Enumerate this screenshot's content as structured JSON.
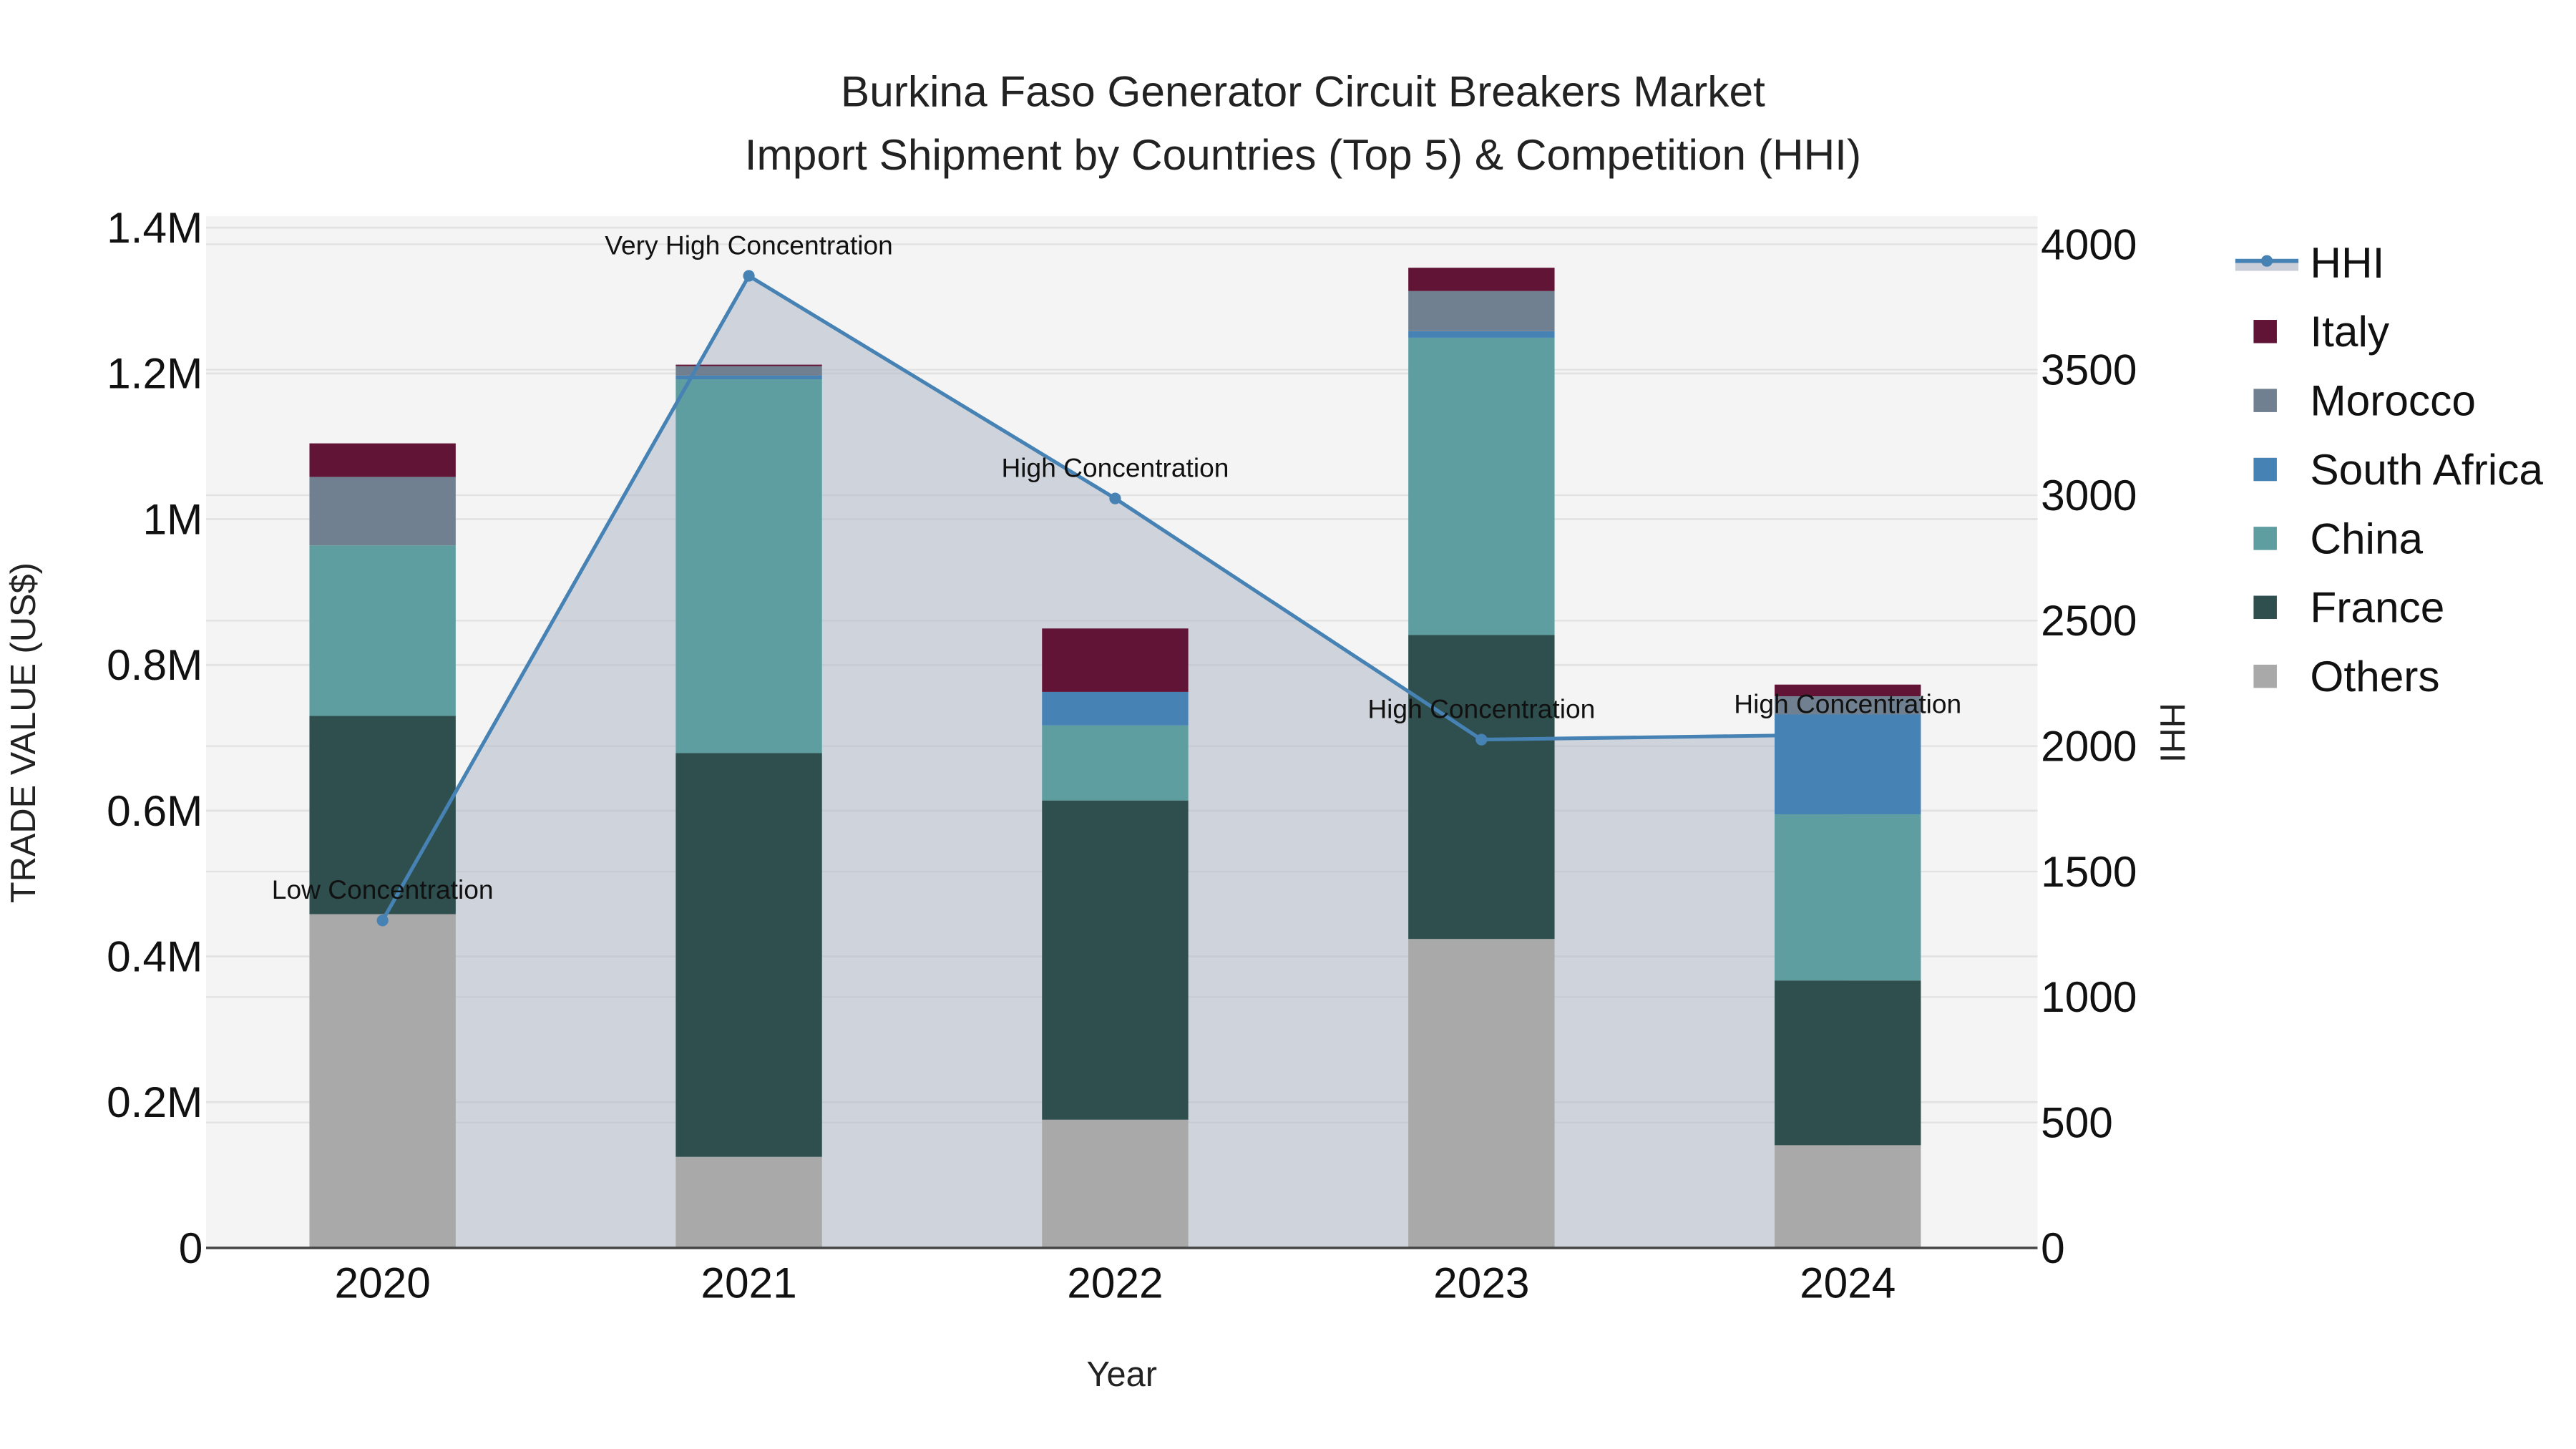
{
  "title": {
    "line1": "Burkina Faso Generator Circuit Breakers Market",
    "line2": "Import Shipment by Countries (Top 5) & Competition (HHI)"
  },
  "axes": {
    "x_title": "Year",
    "y_left_title": "TRADE VALUE (US$)",
    "y_right_title": "HHI",
    "y_left_ticks": [
      "0",
      "0.2M",
      "0.4M",
      "0.6M",
      "0.8M",
      "1M",
      "1.2M",
      "1.4M"
    ],
    "y_right_ticks": [
      "0",
      "500",
      "1000",
      "1500",
      "2000",
      "2500",
      "3000",
      "3500",
      "4000"
    ],
    "x_ticks": [
      "2020",
      "2021",
      "2022",
      "2023",
      "2024"
    ]
  },
  "legend": {
    "items": [
      {
        "label": "HHI",
        "kind": "line",
        "color": "#4682B4"
      },
      {
        "label": "Italy",
        "kind": "box",
        "color": "#621436"
      },
      {
        "label": "Morocco",
        "kind": "box",
        "color": "#708090"
      },
      {
        "label": "South Africa",
        "kind": "box",
        "color": "#4682B4"
      },
      {
        "label": "China",
        "kind": "box",
        "color": "#5F9EA0"
      },
      {
        "label": "France",
        "kind": "box",
        "color": "#2F4F4F"
      },
      {
        "label": "Others",
        "kind": "box",
        "color": "#A9A9A9"
      }
    ]
  },
  "colors": {
    "plot_bg": "#F4F4F4",
    "grid": "#E2E2E2",
    "hhi_line": "#4682B4",
    "hhi_fill": "rgba(176,184,198,0.55)",
    "axis_line": "#444444"
  },
  "chart_data": {
    "type": "bar",
    "title": "Burkina Faso Generator Circuit Breakers Market Import Shipment by Countries (Top 5) & Competition (HHI)",
    "xlabel": "Year",
    "ylabel": "TRADE VALUE (US$)",
    "y2label": "HHI",
    "ylim": [
      0,
      1400000
    ],
    "y2lim": [
      0,
      4000
    ],
    "stacked": true,
    "grid": true,
    "legend_position": "right",
    "categories": [
      "2020",
      "2021",
      "2022",
      "2023",
      "2024"
    ],
    "series": [
      {
        "name": "Others",
        "color": "#A9A9A9",
        "values": [
          458000,
          125000,
          176000,
          424000,
          141000
        ]
      },
      {
        "name": "France",
        "color": "#2F4F4F",
        "values": [
          272000,
          554000,
          438000,
          417000,
          226000
        ]
      },
      {
        "name": "China",
        "color": "#5F9EA0",
        "values": [
          234000,
          513000,
          103000,
          408000,
          228000
        ]
      },
      {
        "name": "South Africa",
        "color": "#4682B4",
        "values": [
          0,
          5000,
          46000,
          9000,
          137000
        ]
      },
      {
        "name": "Morocco",
        "color": "#708090",
        "values": [
          94000,
          13000,
          0,
          55000,
          25000
        ]
      },
      {
        "name": "Italy",
        "color": "#621436",
        "values": [
          46000,
          2000,
          87000,
          32000,
          16000
        ]
      }
    ],
    "line_series": {
      "name": "HHI",
      "axis": "right",
      "color": "#4682B4",
      "fill": "tozeroy",
      "values": [
        1305,
        3874,
        2987,
        2026,
        2046
      ],
      "annotations": [
        "Low Concentration",
        "Very High Concentration",
        "High Concentration",
        "High Concentration",
        "High Concentration"
      ]
    }
  }
}
